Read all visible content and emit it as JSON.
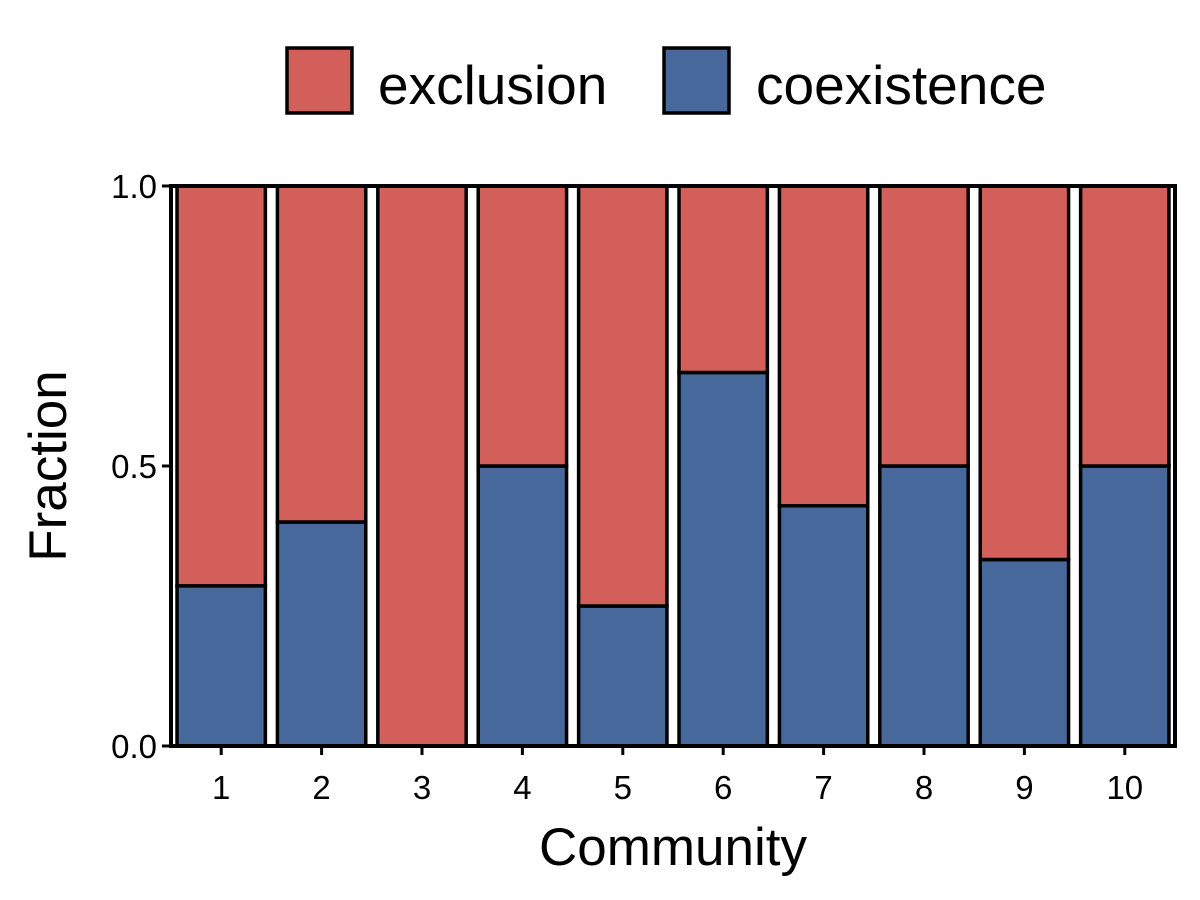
{
  "chart_data": {
    "type": "bar",
    "stacked": true,
    "categories": [
      "1",
      "2",
      "3",
      "4",
      "5",
      "6",
      "7",
      "8",
      "9",
      "10"
    ],
    "series": [
      {
        "name": "coexistence",
        "color": "#46689b",
        "values": [
          0.286,
          0.4,
          0.0,
          0.5,
          0.25,
          0.667,
          0.429,
          0.5,
          0.333,
          0.5
        ]
      },
      {
        "name": "exclusion",
        "color": "#d35f5a",
        "values": [
          0.714,
          0.6,
          1.0,
          0.5,
          0.75,
          0.333,
          0.571,
          0.5,
          0.667,
          0.5
        ]
      }
    ],
    "legend_order": [
      "exclusion",
      "coexistence"
    ],
    "legend_position": "top",
    "xlabel": "Community",
    "ylabel": "Fraction",
    "ylim": [
      0,
      1
    ],
    "yticks": [
      "0.0",
      "0.5",
      "1.0"
    ],
    "grid": false
  }
}
